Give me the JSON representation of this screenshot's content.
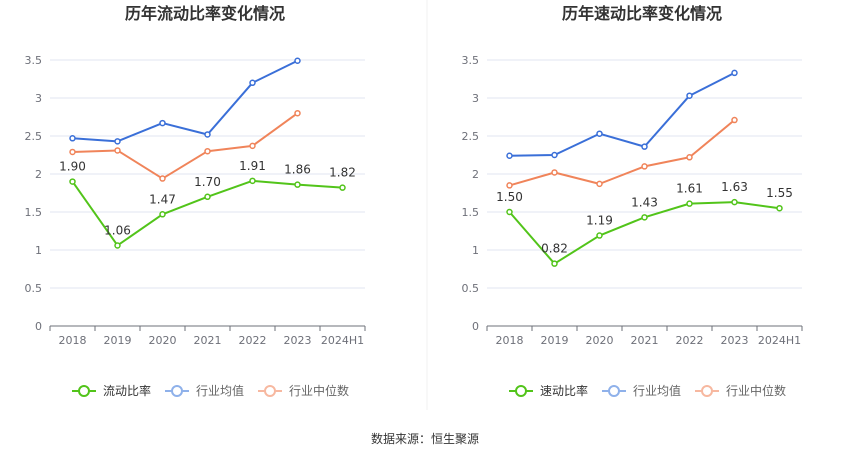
{
  "source_label": "数据来源：恒生聚源",
  "colors": {
    "primary": "#52c41a",
    "industry_avg": "#3a6fd8",
    "industry_median": "#f0845a",
    "legend_avg": "#8fb1ea",
    "legend_median": "#f7b8a0"
  },
  "chart_data": [
    {
      "type": "line",
      "title": "历年流动比率变化情况",
      "categories": [
        "2018",
        "2019",
        "2020",
        "2021",
        "2022",
        "2023",
        "2024H1"
      ],
      "ylim": [
        0,
        3.5
      ],
      "yticks": [
        "0",
        "0.5",
        "1",
        "1.5",
        "2",
        "2.5",
        "3",
        "3.5"
      ],
      "grid": true,
      "legend_position": "bottom",
      "series": [
        {
          "name": "流动比率",
          "values": [
            1.9,
            1.06,
            1.47,
            1.7,
            1.91,
            1.86,
            1.82
          ],
          "labels": [
            "1.90",
            "1.06",
            "1.47",
            "1.70",
            "1.91",
            "1.86",
            "1.82"
          ]
        },
        {
          "name": "行业均值",
          "values": [
            2.47,
            2.43,
            2.67,
            2.52,
            3.2,
            3.49,
            null
          ]
        },
        {
          "name": "行业中位数",
          "values": [
            2.29,
            2.31,
            1.94,
            2.3,
            2.37,
            2.8,
            null
          ]
        }
      ]
    },
    {
      "type": "line",
      "title": "历年速动比率变化情况",
      "categories": [
        "2018",
        "2019",
        "2020",
        "2021",
        "2022",
        "2023",
        "2024H1"
      ],
      "ylim": [
        0,
        3.5
      ],
      "yticks": [
        "0",
        "0.5",
        "1",
        "1.5",
        "2",
        "2.5",
        "3",
        "3.5"
      ],
      "grid": true,
      "legend_position": "bottom",
      "series": [
        {
          "name": "速动比率",
          "values": [
            1.5,
            0.82,
            1.19,
            1.43,
            1.61,
            1.63,
            1.55
          ],
          "labels": [
            "1.50",
            "0.82",
            "1.19",
            "1.43",
            "1.61",
            "1.63",
            "1.55"
          ]
        },
        {
          "name": "行业均值",
          "values": [
            2.24,
            2.25,
            2.53,
            2.36,
            3.03,
            3.33,
            null
          ]
        },
        {
          "name": "行业中位数",
          "values": [
            1.85,
            2.02,
            1.87,
            2.1,
            2.22,
            2.71,
            null
          ]
        }
      ]
    }
  ]
}
